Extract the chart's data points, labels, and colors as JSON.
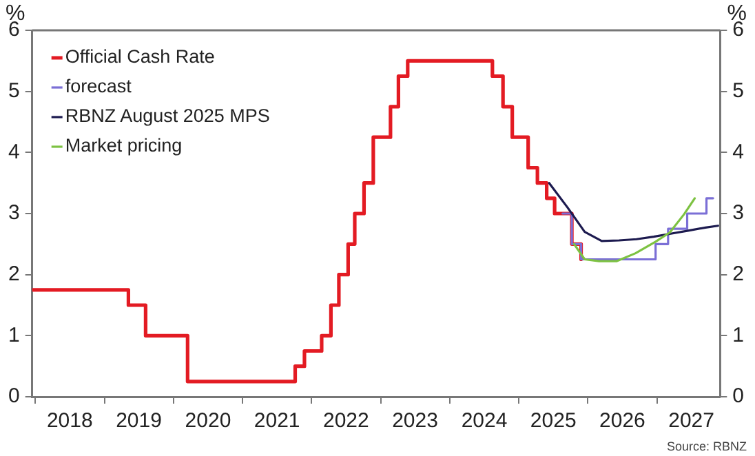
{
  "chart_data": {
    "type": "step",
    "ylabel": "%",
    "y2label": "%",
    "annotations": [
      "Source: RBNZ"
    ],
    "xlim": [
      "2017-12-15",
      "2027-12-01"
    ],
    "xticks": [
      {
        "value": "2018-01-01",
        "label": null
      },
      {
        "value": "2018-07-02",
        "label": "2018"
      },
      {
        "value": "2019-01-01",
        "label": null
      },
      {
        "value": "2019-07-02",
        "label": "2019"
      },
      {
        "value": "2020-01-01",
        "label": null
      },
      {
        "value": "2020-07-02",
        "label": "2020"
      },
      {
        "value": "2021-01-01",
        "label": null
      },
      {
        "value": "2021-07-02",
        "label": "2021"
      },
      {
        "value": "2022-01-01",
        "label": null
      },
      {
        "value": "2022-07-02",
        "label": "2022"
      },
      {
        "value": "2023-01-01",
        "label": null
      },
      {
        "value": "2023-07-02",
        "label": "2023"
      },
      {
        "value": "2024-01-01",
        "label": null
      },
      {
        "value": "2024-07-02",
        "label": "2024"
      },
      {
        "value": "2025-01-01",
        "label": null
      },
      {
        "value": "2025-07-02",
        "label": "2025"
      },
      {
        "value": "2026-01-01",
        "label": null
      },
      {
        "value": "2026-07-02",
        "label": "2026"
      },
      {
        "value": "2027-01-01",
        "label": null
      },
      {
        "value": "2027-07-02",
        "label": "2027"
      }
    ],
    "ylim": [
      0,
      6
    ],
    "yticks": [
      0,
      1,
      2,
      3,
      4,
      5,
      6
    ],
    "y2lim": [
      0,
      6
    ],
    "y2ticks": [
      0,
      1,
      2,
      3,
      4,
      5,
      6
    ],
    "grid": false,
    "legend": "top left",
    "line_style": "solid",
    "marker": "none",
    "series": [
      {
        "name": "Official Cash Rate",
        "color": "#e31b23",
        "x": [
          "2017-12-15",
          "2019-05-08",
          "2019-08-07",
          "2020-03-16",
          "2021-10-06",
          "2021-11-24",
          "2022-02-23",
          "2022-04-13",
          "2022-05-25",
          "2022-07-13",
          "2022-08-17",
          "2022-10-05",
          "2022-11-23",
          "2023-02-22",
          "2023-04-05",
          "2023-05-24",
          "2024-08-14",
          "2024-10-09",
          "2024-11-27",
          "2025-02-19",
          "2025-04-09",
          "2025-05-28",
          "2025-07-09",
          "2025-10-08",
          "2025-11-26"
        ],
        "values": [
          1.75,
          1.5,
          1.0,
          0.25,
          0.5,
          0.75,
          1.0,
          1.5,
          2.0,
          2.5,
          3.0,
          3.5,
          4.25,
          4.75,
          5.25,
          5.5,
          5.25,
          4.75,
          4.25,
          3.75,
          3.5,
          3.25,
          3.0,
          2.5,
          2.25
        ]
      },
      {
        "name": "forecast",
        "color": "#7b6fd6",
        "x": [
          "2025-08-20",
          "2025-10-08",
          "2025-11-26",
          "2026-12-25",
          "2027-03-01",
          "2027-06-10",
          "2027-09-20",
          "2027-10-25"
        ],
        "values": [
          3.0,
          2.5,
          2.25,
          2.5,
          2.75,
          3.0,
          3.25,
          3.25
        ]
      },
      {
        "name": "RBNZ August 2025 MPS",
        "color": "#1c1a4f",
        "type": "line",
        "x": [
          "2025-06-10",
          "2025-09-15",
          "2025-12-15",
          "2026-03-15",
          "2026-06-15",
          "2026-09-15",
          "2026-12-15",
          "2027-03-15",
          "2027-06-15",
          "2027-09-15",
          "2027-11-20"
        ],
        "values": [
          3.5,
          3.1,
          2.7,
          2.55,
          2.56,
          2.58,
          2.62,
          2.67,
          2.72,
          2.77,
          2.8
        ]
      },
      {
        "name": "Market pricing",
        "color": "#7dc242",
        "type": "line",
        "x": [
          "2025-10-20",
          "2025-12-15",
          "2026-03-01",
          "2026-06-01",
          "2026-09-10",
          "2026-12-25",
          "2027-03-10",
          "2027-05-25",
          "2027-07-20"
        ],
        "values": [
          2.5,
          2.25,
          2.22,
          2.22,
          2.35,
          2.54,
          2.69,
          2.99,
          3.25
        ]
      }
    ]
  }
}
